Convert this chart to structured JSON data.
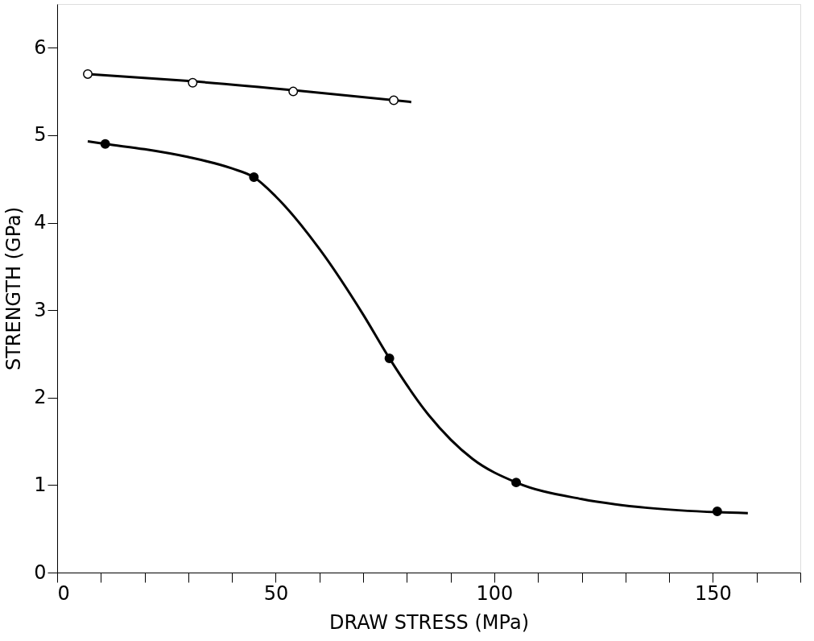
{
  "chart_data": {
    "type": "scatter",
    "xlabel": "DRAW STRESS (MPa)",
    "ylabel": "STRENGTH (GPa)",
    "xlim": [
      0,
      170
    ],
    "ylim": [
      0,
      6.5
    ],
    "xticks": [
      0,
      {
        "value": 10,
        "label": null
      },
      {
        "value": 20,
        "label": null
      },
      {
        "value": 30,
        "label": null
      },
      {
        "value": 40,
        "label": null
      },
      50,
      {
        "value": 60,
        "label": null
      },
      {
        "value": 70,
        "label": null
      },
      {
        "value": 80,
        "label": null
      },
      {
        "value": 90,
        "label": null
      },
      100,
      {
        "value": 110,
        "label": null
      },
      {
        "value": 120,
        "label": null
      },
      {
        "value": 130,
        "label": null
      },
      {
        "value": 140,
        "label": null
      },
      150,
      {
        "value": 160,
        "label": null
      },
      {
        "value": 170,
        "label": null
      }
    ],
    "yticks": [
      0,
      1,
      2,
      3,
      4,
      5,
      6
    ],
    "line_style": "solid",
    "series": [
      {
        "type": "line",
        "color": "#000000",
        "marker": "none",
        "x": [
          7,
          30,
          55,
          81
        ],
        "values": [
          5.7,
          5.62,
          5.51,
          5.38
        ]
      },
      {
        "type": "line",
        "color": "#000000",
        "marker": "none",
        "x": [
          7,
          11,
          20,
          30,
          40,
          45,
          50,
          60,
          70,
          76,
          85,
          95,
          105,
          120,
          135,
          151,
          158
        ],
        "values": [
          4.93,
          4.9,
          4.84,
          4.75,
          4.62,
          4.52,
          4.3,
          3.7,
          2.95,
          2.45,
          1.8,
          1.3,
          1.03,
          0.84,
          0.74,
          0.69,
          0.68
        ]
      },
      {
        "color": "#ffffff",
        "marker": "circle",
        "x": [
          7,
          31,
          54,
          77
        ],
        "values": [
          5.7,
          5.6,
          5.5,
          5.4
        ]
      },
      {
        "color": "#000000",
        "marker": "circle",
        "x": [
          11,
          45,
          76,
          105,
          151
        ],
        "values": [
          4.9,
          4.52,
          2.45,
          1.03,
          0.7
        ]
      }
    ]
  }
}
